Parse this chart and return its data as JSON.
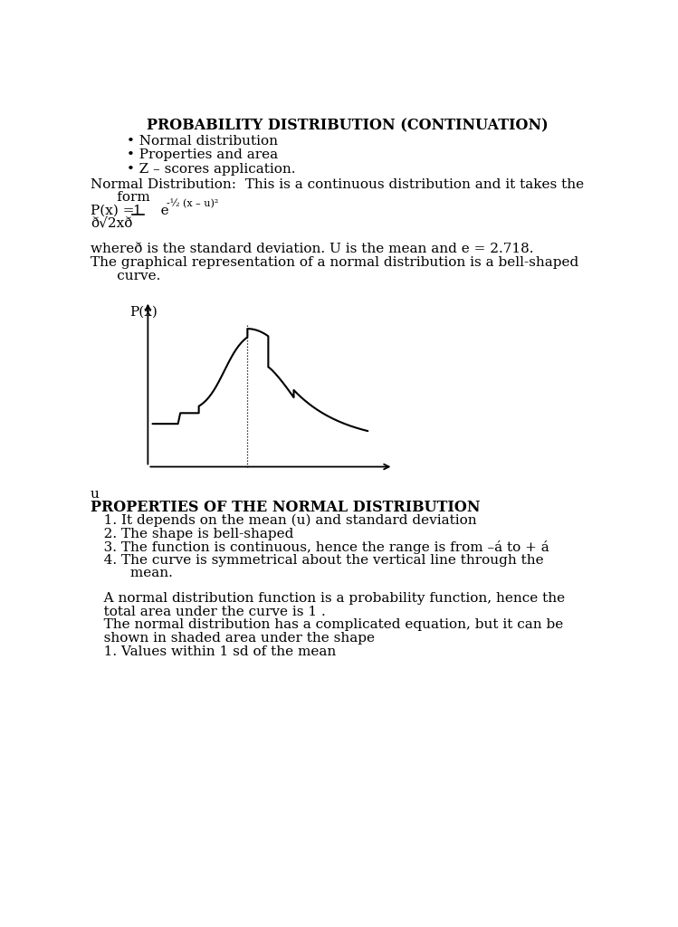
{
  "title": "PROBABILITY DISTRIBUTION (CONTINUATION)",
  "bullet1": "Normal distribution",
  "bullet2": "Properties and area",
  "bullet3": "Z – scores application.",
  "normal_dist_intro": "Normal Distribution:  This is a continuous distribution and it takes the",
  "normal_dist_intro2": "      form",
  "formula_px": "P(x) = ",
  "formula_1": "1",
  "formula_e": "   e",
  "formula_exp": "-½ (x – u)²",
  "formula_denom": "ð√2xð",
  "where_text": "whereð is the standard deviation. U is the mean and e = 2.718.",
  "bell_text1": "The graphical representation of a normal distribution is a bell-shaped",
  "bell_text2": "      curve.",
  "graph_ylabel": "P(x)",
  "u_label": "u",
  "properties_title": "PROPERTIES OF THE NORMAL DISTRIBUTION",
  "prop1": "   1. It depends on the mean (u) and standard deviation",
  "prop2": "   2. The shape is bell-shaped",
  "prop3": "   3. The function is continuous, hence the range is from –á to + á",
  "prop4a": "   4. The curve is symmetrical about the vertical line through the",
  "prop4b": "         mean.",
  "para1a": "   A normal distribution function is a probability function, hence the",
  "para1b": "   total area under the curve is 1 .",
  "para2a": "   The normal distribution has a complicated equation, but it can be",
  "para2b": "   shown in shaded area under the shape",
  "para3": "   1. Values within 1 sd of the mean",
  "bg_color": "#ffffff",
  "text_color": "#000000",
  "font_size_title": 11.5,
  "font_size_body": 11.0
}
